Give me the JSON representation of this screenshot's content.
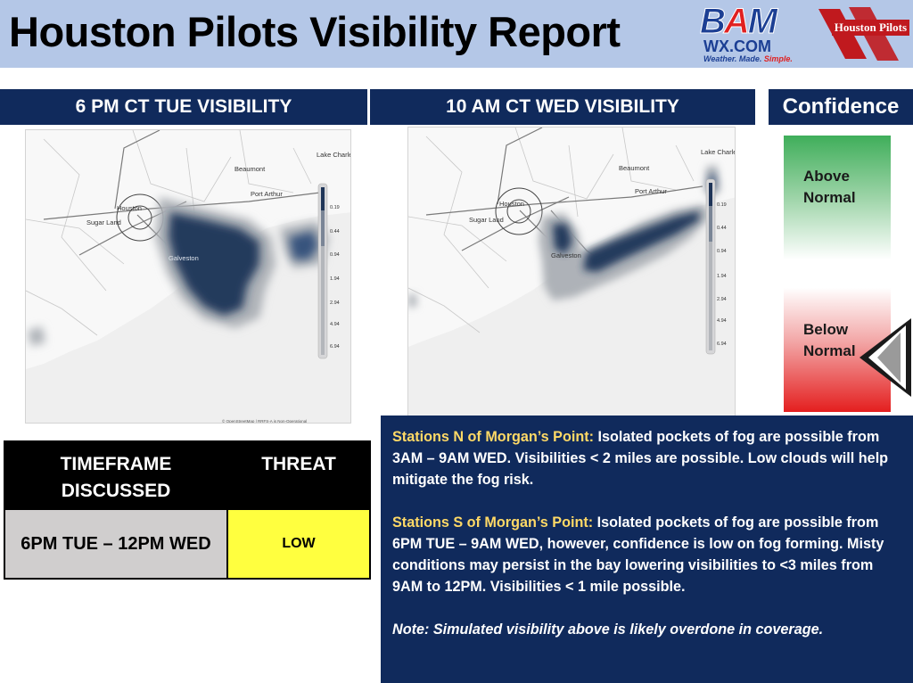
{
  "header": {
    "title": "Houston Pilots Visibility Report",
    "bam_logo": {
      "word_b": "B",
      "word_a": "A",
      "word_m": "M",
      "domain": "WX.COM",
      "tagline_blue": "Weather. Made. ",
      "tagline_red": "Simple."
    },
    "hp_logo": {
      "text": "Houston Pilots"
    }
  },
  "panels": {
    "left_title": "6 PM CT TUE VISIBILITY",
    "right_title": "10 AM CT WED VISIBILITY",
    "confidence_title": "Confidence"
  },
  "map_labels": {
    "lake_charles": "Lake Charle",
    "beaumont": "Beaumont",
    "port_arthur": "Port Arthur",
    "houston": "Houston",
    "sugar_land": "Sugar Land",
    "galveston": "Galveston",
    "credit": "© OpenStreetMap | RRFS-A is Non-Operational"
  },
  "legend": {
    "ticks": [
      "0.19",
      "0.44",
      "0.94",
      "1.94",
      "2.94",
      "4.94",
      "6.94"
    ]
  },
  "confidence": {
    "above": "Above Normal",
    "below": "Below Normal",
    "indicated": "Below Normal"
  },
  "threat_table": {
    "head_timeframe": "TIMEFRAME DISCUSSED",
    "head_threat": "THREAT",
    "timeframe": "6PM TUE – 12PM WED",
    "threat": "LOW"
  },
  "notes": {
    "north_label": "Stations N of Morgan’s Point:",
    "north_text": " Isolated pockets of fog are possible from 3AM – 9AM WED. Visibilities < 2 miles are possible. Low clouds will help mitigate the fog risk.",
    "south_label": "Stations S of Morgan’s Point:",
    "south_text": " Isolated pockets of fog are possible from 6PM TUE – 9AM WED, however, confidence is low on fog forming. Misty conditions may persist in the bay lowering visibilities to <3 miles from 9AM to 12PM. Visibilities < 1 mile possible.",
    "note": "Note: Simulated visibility above is likely overdone in coverage."
  },
  "colors": {
    "header_bg": "#b4c7e7",
    "banner_bg": "#102a5c",
    "fog_dense": "#1f3558",
    "threat_low": "#ffff3f",
    "highlight": "#ffd966"
  }
}
